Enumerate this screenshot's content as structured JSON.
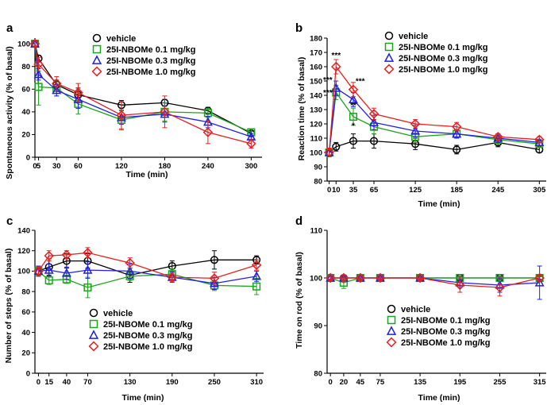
{
  "figure": {
    "colors": {
      "vehicle": "#000000",
      "dose01": "#1aa51a",
      "dose03": "#1f1fe6",
      "dose10": "#e61f1f"
    },
    "series_names": [
      "vehicle",
      "25I-NBOMe 0.1 mg/kg",
      "25I-NBOMe 0.3 mg/kg",
      "25I-NBOMe 1.0 mg/kg"
    ]
  },
  "chart_data": [
    {
      "panel": "a",
      "type": "line",
      "xlabel": "Time (min)",
      "ylabel": "Spontaneous activity (% of basal)",
      "xticks": [
        0,
        5,
        30,
        60,
        120,
        180,
        240,
        300
      ],
      "xtick_labels": [
        "0",
        "5",
        "30",
        "60",
        "120",
        "180",
        "240",
        "300"
      ],
      "xlim": [
        0,
        315
      ],
      "yticks": [
        0,
        20,
        40,
        60,
        80,
        100
      ],
      "ylim": [
        0,
        105
      ],
      "legend_position": "top-right",
      "x": [
        0,
        5,
        30,
        60,
        120,
        180,
        240,
        300
      ],
      "series": [
        {
          "name": "vehicle",
          "values": [
            100,
            87,
            64,
            55,
            46,
            48,
            41,
            21
          ],
          "err": [
            2,
            3,
            4,
            6,
            4,
            3,
            3,
            2
          ]
        },
        {
          "name": "25I-NBOMe 0.1 mg/kg",
          "values": [
            100,
            62,
            61,
            47,
            33,
            40,
            39,
            22
          ],
          "err": [
            3,
            16,
            7,
            9,
            9,
            8,
            4,
            3
          ]
        },
        {
          "name": "25I-NBOMe 0.3 mg/kg",
          "values": [
            100,
            73,
            59,
            51,
            35,
            38,
            31,
            18
          ],
          "err": [
            3,
            5,
            5,
            8,
            6,
            7,
            5,
            3
          ]
        },
        {
          "name": "25I-NBOMe 1.0 mg/kg",
          "values": [
            100,
            82,
            65,
            57,
            37,
            40,
            22,
            12
          ],
          "err": [
            3,
            6,
            6,
            8,
            12,
            14,
            10,
            4
          ]
        }
      ]
    },
    {
      "panel": "b",
      "type": "line",
      "xlabel": "Time (min)",
      "ylabel": "Reaction time (% of basal)",
      "xticks": [
        0,
        10,
        35,
        65,
        125,
        185,
        245,
        305
      ],
      "xtick_labels": [
        "0",
        "10",
        "35",
        "65",
        "125",
        "185",
        "245",
        "305"
      ],
      "xlim": [
        -3,
        315
      ],
      "yticks": [
        80,
        90,
        100,
        110,
        120,
        130,
        140,
        150,
        160,
        170,
        180
      ],
      "ylim": [
        80,
        180
      ],
      "legend_position": "top-right",
      "x": [
        0,
        10,
        35,
        65,
        125,
        185,
        245,
        305
      ],
      "series": [
        {
          "name": "vehicle",
          "values": [
            100,
            104,
            108,
            108,
            106,
            102,
            107,
            102
          ],
          "err": [
            2,
            3,
            5,
            5,
            4,
            3,
            3,
            2
          ]
        },
        {
          "name": "25I-NBOMe 0.1 mg/kg",
          "values": [
            100,
            142,
            125,
            118,
            111,
            113,
            109,
            106
          ],
          "err": [
            3,
            5,
            6,
            5,
            4,
            3,
            3,
            2
          ]
        },
        {
          "name": "25I-NBOMe 0.3 mg/kg",
          "values": [
            100,
            145,
            137,
            121,
            115,
            113,
            110,
            107
          ],
          "err": [
            3,
            5,
            5,
            5,
            4,
            3,
            3,
            2
          ]
        },
        {
          "name": "25I-NBOMe 1.0 mg/kg",
          "values": [
            100,
            160,
            144,
            127,
            120,
            118,
            111,
            109
          ],
          "err": [
            3,
            5,
            5,
            4,
            3,
            3,
            2,
            2
          ]
        }
      ],
      "annotations": [
        {
          "text": "***",
          "x": 10,
          "y": 166
        },
        {
          "text": "***",
          "x": -2,
          "y": 149
        },
        {
          "text": "***",
          "x": -2,
          "y": 140
        },
        {
          "text": "***",
          "x": 45,
          "y": 148
        },
        {
          "text": "**",
          "x": 35,
          "y": 131
        },
        {
          "text": "*",
          "x": 35,
          "y": 117
        }
      ]
    },
    {
      "panel": "c",
      "type": "line",
      "xlabel": "Time (min)",
      "ylabel": "Number of steps (% of basal)",
      "xticks": [
        0,
        15,
        40,
        70,
        130,
        190,
        250,
        310
      ],
      "xtick_labels": [
        "0",
        "15",
        "40",
        "70",
        "130",
        "190",
        "250",
        "310"
      ],
      "xlim": [
        -5,
        320
      ],
      "yticks": [
        0,
        20,
        40,
        60,
        80,
        100,
        120,
        140
      ],
      "ylim": [
        0,
        140
      ],
      "legend_position": "bottom-right",
      "x": [
        0,
        15,
        40,
        70,
        130,
        190,
        250,
        310
      ],
      "series": [
        {
          "name": "vehicle",
          "values": [
            100,
            104,
            110,
            110,
            96,
            105,
            111,
            111
          ],
          "err": [
            4,
            8,
            7,
            7,
            7,
            5,
            9,
            4
          ]
        },
        {
          "name": "25I-NBOMe 0.1 mg/kg",
          "values": [
            100,
            91,
            92,
            84,
            95,
            97,
            86,
            85
          ],
          "err": [
            5,
            4,
            4,
            10,
            4,
            5,
            5,
            8
          ]
        },
        {
          "name": "25I-NBOMe 0.3 mg/kg",
          "values": [
            100,
            101,
            98,
            101,
            100,
            94,
            88,
            95
          ],
          "err": [
            5,
            6,
            6,
            8,
            7,
            5,
            6,
            5
          ]
        },
        {
          "name": "25I-NBOMe 1.0 mg/kg",
          "values": [
            100,
            115,
            116,
            118,
            108,
            94,
            93,
            106
          ],
          "err": [
            4,
            5,
            4,
            5,
            5,
            4,
            6,
            5
          ]
        }
      ]
    },
    {
      "panel": "d",
      "type": "line",
      "xlabel": "Time (min)",
      "ylabel": "Time on rod (% of basal)",
      "xticks": [
        0,
        20,
        45,
        75,
        135,
        195,
        255,
        315
      ],
      "xtick_labels": [
        "0",
        "20",
        "45",
        "75",
        "135",
        "195",
        "255",
        "315"
      ],
      "xlim": [
        -5,
        325
      ],
      "yticks": [
        80,
        90,
        100,
        110
      ],
      "ylim": [
        80,
        110
      ],
      "legend_position": "bottom-right",
      "x": [
        0,
        20,
        45,
        75,
        135,
        195,
        255,
        315
      ],
      "series": [
        {
          "name": "vehicle",
          "values": [
            100,
            100,
            100,
            100,
            100,
            100,
            100,
            100
          ],
          "err": [
            0.3,
            0.3,
            0.3,
            0.3,
            0.3,
            0.3,
            0.3,
            0.3
          ]
        },
        {
          "name": "25I-NBOMe 0.1 mg/kg",
          "values": [
            100,
            99,
            100,
            100,
            100,
            100,
            100,
            100
          ],
          "err": [
            0.4,
            1.2,
            0.4,
            0.4,
            0.4,
            0.4,
            0.4,
            0.4
          ]
        },
        {
          "name": "25I-NBOMe 0.3 mg/kg",
          "values": [
            100,
            100,
            100,
            100,
            100,
            99,
            98.5,
            99
          ],
          "err": [
            0.4,
            0.6,
            0.4,
            0.4,
            0.4,
            1,
            1.5,
            3.5
          ]
        },
        {
          "name": "25I-NBOMe 1.0 mg/kg",
          "values": [
            100,
            100,
            100,
            100,
            100,
            98.5,
            98,
            100
          ],
          "err": [
            0.4,
            0.5,
            0.4,
            0.4,
            0.4,
            1.5,
            1.8,
            0.5
          ]
        }
      ]
    }
  ]
}
